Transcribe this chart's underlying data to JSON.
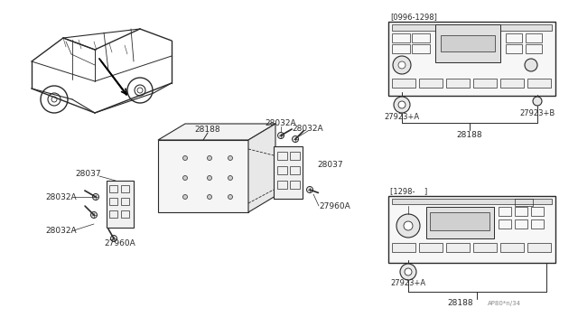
{
  "bg_color": "#ffffff",
  "line_color": "#2a2a2a",
  "fig_width": 6.4,
  "fig_height": 3.72,
  "dpi": 100,
  "labels": {
    "28188_box": "28188",
    "28037_left": "28037",
    "28037_right": "28037",
    "28032a_1": "28032A",
    "28032a_2": "28032A",
    "28032a_3": "28032A",
    "28032a_4": "28032A",
    "27960a_left": "27960A",
    "27960a_right": "27960A",
    "bracket1": "[0996-1298]",
    "bracket2": "[1298-    ]",
    "27923a_top": "27923+A",
    "27923b_top": "27923+B",
    "28188_top": "28188",
    "27923a_bot": "27923+A",
    "28188_bot": "28188",
    "watermark": "AP80*n/34"
  }
}
